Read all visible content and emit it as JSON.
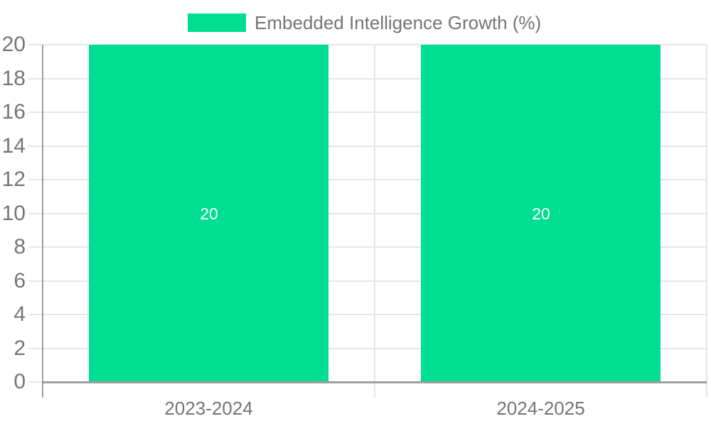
{
  "chart_data": {
    "type": "bar",
    "title": "",
    "categories": [
      "2023-2024",
      "2024-2025"
    ],
    "series": [
      {
        "name": "Embedded Intelligence Growth (%)",
        "values": [
          20,
          20
        ],
        "color": "#00DE91"
      }
    ],
    "value_labels": [
      "20",
      "20"
    ],
    "legend": {
      "position": "top",
      "label": "Embedded Intelligence Growth (%)",
      "swatch_color": "#00DE91"
    },
    "xlabel": "",
    "ylabel": "",
    "ylim": [
      0,
      20
    ],
    "yticks": [
      0,
      2,
      4,
      6,
      8,
      10,
      12,
      14,
      16,
      18,
      20
    ],
    "grid": true,
    "layout_hints": {
      "legend_position": "top",
      "bar_width_fraction": 0.722
    },
    "colors": {
      "bar": "#00DE91",
      "grid": "#E6E6E6",
      "axis": "#9E9E9E",
      "tick_label": "#757575",
      "value_label": "#FFFFFF",
      "background": "#FFFFFF"
    }
  }
}
